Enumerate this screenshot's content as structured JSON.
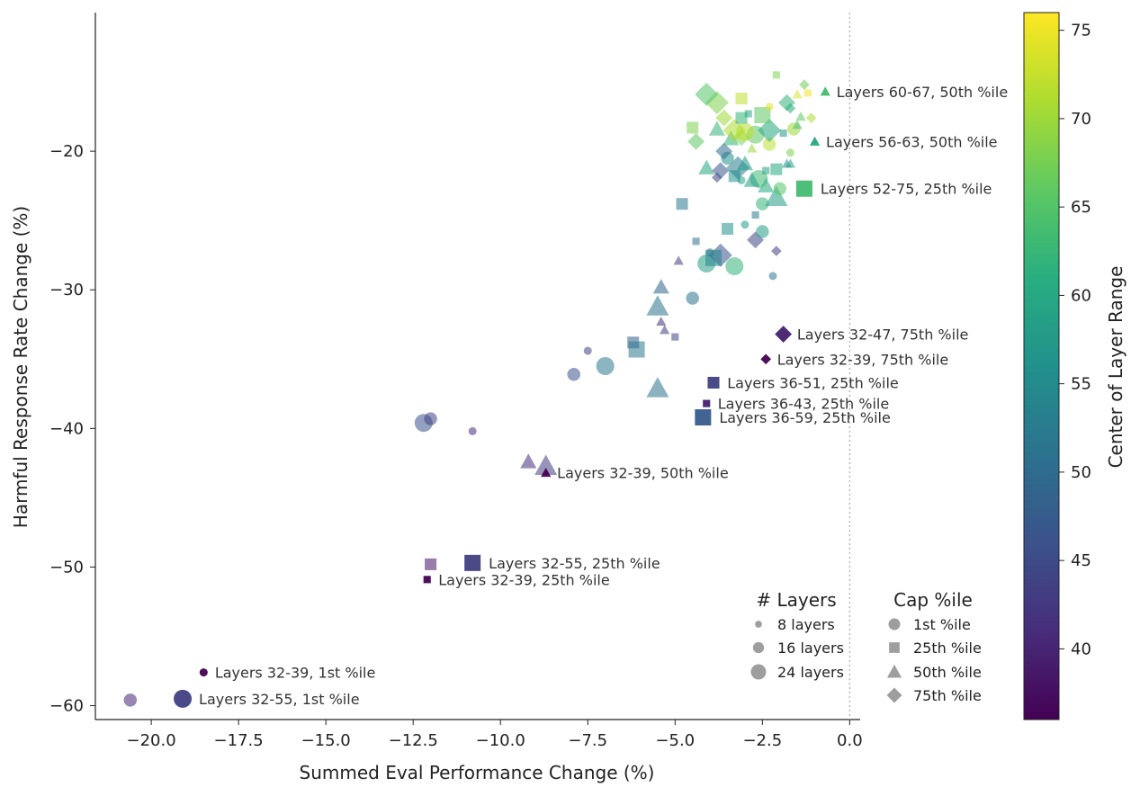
{
  "chart_data": {
    "type": "scatter",
    "title": "",
    "xlabel": "Summed Eval Performance Change (%)",
    "ylabel": "Harmful Response Rate Change (%)",
    "xlim": [
      -21.6,
      0.3
    ],
    "ylim": [
      -61,
      -10
    ],
    "xticks": [
      -20.0,
      -17.5,
      -15.0,
      -12.5,
      -10.0,
      -7.5,
      -5.0,
      -2.5,
      0.0
    ],
    "xtick_labels": [
      "−20.0",
      "−17.5",
      "−15.0",
      "−12.5",
      "−10.0",
      "−7.5",
      "−5.0",
      "−2.5",
      "0.0"
    ],
    "yticks": [
      -20,
      -30,
      -40,
      -50,
      -60
    ],
    "ytick_labels": [
      "−20",
      "−30",
      "−40",
      "−50",
      "−60"
    ],
    "reference_line_x": 0,
    "colorbar": {
      "label": "Center of Layer Range",
      "colormap": "viridis",
      "range": [
        36,
        76
      ],
      "ticks": [
        40,
        45,
        50,
        55,
        60,
        65,
        70,
        75
      ],
      "tick_labels": [
        "40",
        "45",
        "50",
        "55",
        "60",
        "65",
        "70",
        "75"
      ]
    },
    "legend_layers": {
      "title": "# Layers",
      "entries": [
        {
          "label": "8 layers",
          "n_layers": 8
        },
        {
          "label": "16 layers",
          "n_layers": 16
        },
        {
          "label": "24 layers",
          "n_layers": 24
        }
      ]
    },
    "legend_cap": {
      "title": "Cap %ile",
      "entries": [
        {
          "label": "1st %ile",
          "marker": "circle"
        },
        {
          "label": "25th %ile",
          "marker": "square"
        },
        {
          "label": "50th %ile",
          "marker": "triangle"
        },
        {
          "label": "75th %ile",
          "marker": "diamond"
        }
      ]
    },
    "highlighted": [
      {
        "label": "Layers 60-67, 50th %ile",
        "x": -0.7,
        "y": -15.7,
        "marker": "triangle",
        "n_layers": 8,
        "center": 63.5
      },
      {
        "label": "Layers 56-63, 50th %ile",
        "x": -1.0,
        "y": -19.3,
        "marker": "triangle",
        "n_layers": 8,
        "center": 59.5
      },
      {
        "label": "Layers 52-75, 25th %ile",
        "x": -1.3,
        "y": -22.7,
        "marker": "square",
        "n_layers": 24,
        "center": 63.5
      },
      {
        "label": "Layers 32-47, 75th %ile",
        "x": -1.9,
        "y": -33.2,
        "marker": "diamond",
        "n_layers": 16,
        "center": 39.5
      },
      {
        "label": "Layers 32-39, 75th %ile",
        "x": -2.4,
        "y": -35.0,
        "marker": "diamond",
        "n_layers": 8,
        "center": 35.5
      },
      {
        "label": "Layers 36-51, 25th %ile",
        "x": -3.9,
        "y": -36.7,
        "marker": "square",
        "n_layers": 16,
        "center": 43.5
      },
      {
        "label": "Layers 36-43, 25th %ile",
        "x": -4.1,
        "y": -38.2,
        "marker": "square",
        "n_layers": 8,
        "center": 39.5
      },
      {
        "label": "Layers 36-59, 25th %ile",
        "x": -4.2,
        "y": -39.2,
        "marker": "square",
        "n_layers": 24,
        "center": 47.5
      },
      {
        "label": "Layers 32-39, 50th %ile",
        "x": -8.7,
        "y": -43.2,
        "marker": "triangle",
        "n_layers": 8,
        "center": 35.5
      },
      {
        "label": "Layers 32-55, 25th %ile",
        "x": -10.8,
        "y": -49.7,
        "marker": "square",
        "n_layers": 24,
        "center": 43.5
      },
      {
        "label": "Layers 32-39, 25th %ile",
        "x": -12.1,
        "y": -50.9,
        "marker": "square",
        "n_layers": 8,
        "center": 35.5
      },
      {
        "label": "Layers 32-39, 1st %ile",
        "x": -18.5,
        "y": -57.6,
        "marker": "circle",
        "n_layers": 8,
        "center": 35.5
      },
      {
        "label": "Layers 32-55, 1st %ile",
        "x": -19.1,
        "y": -59.5,
        "marker": "circle",
        "n_layers": 24,
        "center": 43.5
      }
    ],
    "other_points": [
      {
        "x": -20.6,
        "y": -59.6,
        "marker": "circle",
        "n_layers": 16,
        "center": 40
      },
      {
        "x": -12.0,
        "y": -49.8,
        "marker": "square",
        "n_layers": 16,
        "center": 38
      },
      {
        "x": -12.2,
        "y": -39.6,
        "marker": "circle",
        "n_layers": 24,
        "center": 46
      },
      {
        "x": -12.0,
        "y": -39.3,
        "marker": "circle",
        "n_layers": 16,
        "center": 44
      },
      {
        "x": -10.8,
        "y": -40.2,
        "marker": "circle",
        "n_layers": 8,
        "center": 41
      },
      {
        "x": -9.2,
        "y": -42.4,
        "marker": "triangle",
        "n_layers": 16,
        "center": 41
      },
      {
        "x": -8.7,
        "y": -42.7,
        "marker": "triangle",
        "n_layers": 24,
        "center": 43
      },
      {
        "x": -7.9,
        "y": -36.1,
        "marker": "circle",
        "n_layers": 16,
        "center": 46
      },
      {
        "x": -7.5,
        "y": -34.4,
        "marker": "circle",
        "n_layers": 8,
        "center": 44
      },
      {
        "x": -7.0,
        "y": -35.5,
        "marker": "circle",
        "n_layers": 24,
        "center": 52
      },
      {
        "x": -6.2,
        "y": -33.8,
        "marker": "square",
        "n_layers": 16,
        "center": 48
      },
      {
        "x": -6.1,
        "y": -34.3,
        "marker": "square",
        "n_layers": 24,
        "center": 52
      },
      {
        "x": -5.0,
        "y": -33.4,
        "marker": "square",
        "n_layers": 8,
        "center": 44
      },
      {
        "x": -5.4,
        "y": -32.3,
        "marker": "triangle",
        "n_layers": 8,
        "center": 41
      },
      {
        "x": -5.3,
        "y": -32.9,
        "marker": "triangle",
        "n_layers": 8,
        "center": 43
      },
      {
        "x": -5.5,
        "y": -37.1,
        "marker": "triangle",
        "n_layers": 24,
        "center": 51
      },
      {
        "x": -5.5,
        "y": -31.2,
        "marker": "triangle",
        "n_layers": 24,
        "center": 51
      },
      {
        "x": -5.4,
        "y": -29.8,
        "marker": "triangle",
        "n_layers": 16,
        "center": 49
      },
      {
        "x": -4.5,
        "y": -30.6,
        "marker": "circle",
        "n_layers": 16,
        "center": 51
      },
      {
        "x": -4.9,
        "y": -27.9,
        "marker": "triangle",
        "n_layers": 8,
        "center": 43
      },
      {
        "x": -4.8,
        "y": -23.8,
        "marker": "square",
        "n_layers": 16,
        "center": 52
      },
      {
        "x": -4.4,
        "y": -26.5,
        "marker": "square",
        "n_layers": 8,
        "center": 51
      },
      {
        "x": -4.1,
        "y": -28.1,
        "marker": "circle",
        "n_layers": 24,
        "center": 58
      },
      {
        "x": -3.7,
        "y": -27.5,
        "marker": "diamond",
        "n_layers": 24,
        "center": 46
      },
      {
        "x": -3.9,
        "y": -27.7,
        "marker": "square",
        "n_layers": 24,
        "center": 54
      },
      {
        "x": -4.0,
        "y": -27.3,
        "marker": "circle",
        "n_layers": 8,
        "center": 52
      },
      {
        "x": -3.5,
        "y": -25.6,
        "marker": "square",
        "n_layers": 16,
        "center": 56
      },
      {
        "x": -3.3,
        "y": -28.3,
        "marker": "circle",
        "n_layers": 24,
        "center": 62
      },
      {
        "x": -3.0,
        "y": -25.3,
        "marker": "circle",
        "n_layers": 8,
        "center": 58
      },
      {
        "x": -2.7,
        "y": -24.6,
        "marker": "square",
        "n_layers": 8,
        "center": 52
      },
      {
        "x": -2.7,
        "y": -26.4,
        "marker": "diamond",
        "n_layers": 16,
        "center": 44
      },
      {
        "x": -2.5,
        "y": -25.8,
        "marker": "circle",
        "n_layers": 16,
        "center": 58
      },
      {
        "x": -2.1,
        "y": -27.2,
        "marker": "diamond",
        "n_layers": 8,
        "center": 43
      },
      {
        "x": -2.2,
        "y": -29.0,
        "marker": "circle",
        "n_layers": 8,
        "center": 52
      },
      {
        "x": -2.5,
        "y": -23.8,
        "marker": "circle",
        "n_layers": 16,
        "center": 62
      },
      {
        "x": -2.1,
        "y": -23.3,
        "marker": "triangle",
        "n_layers": 24,
        "center": 58
      },
      {
        "x": -2.0,
        "y": -22.7,
        "marker": "circle",
        "n_layers": 16,
        "center": 65
      },
      {
        "x": -2.4,
        "y": -22.5,
        "marker": "triangle",
        "n_layers": 16,
        "center": 60
      },
      {
        "x": -2.6,
        "y": -22.0,
        "marker": "circle",
        "n_layers": 24,
        "center": 63
      },
      {
        "x": -2.8,
        "y": -22.1,
        "marker": "triangle",
        "n_layers": 16,
        "center": 58
      },
      {
        "x": -3.1,
        "y": -22.1,
        "marker": "circle",
        "n_layers": 8,
        "center": 60
      },
      {
        "x": -3.3,
        "y": -21.8,
        "marker": "square",
        "n_layers": 16,
        "center": 56
      },
      {
        "x": -2.1,
        "y": -21.3,
        "marker": "square",
        "n_layers": 16,
        "center": 60
      },
      {
        "x": -2.4,
        "y": -21.4,
        "marker": "square",
        "n_layers": 8,
        "center": 58
      },
      {
        "x": -3.8,
        "y": -21.9,
        "marker": "diamond",
        "n_layers": 8,
        "center": 44
      },
      {
        "x": -3.7,
        "y": -21.4,
        "marker": "diamond",
        "n_layers": 16,
        "center": 47
      },
      {
        "x": -4.1,
        "y": -21.2,
        "marker": "triangle",
        "n_layers": 16,
        "center": 60
      },
      {
        "x": -3.2,
        "y": -21.2,
        "marker": "diamond",
        "n_layers": 24,
        "center": 53
      },
      {
        "x": -3.0,
        "y": -20.9,
        "marker": "triangle",
        "n_layers": 16,
        "center": 57
      },
      {
        "x": -3.5,
        "y": -20.5,
        "marker": "circle",
        "n_layers": 16,
        "center": 56
      },
      {
        "x": -3.6,
        "y": -20.0,
        "marker": "diamond",
        "n_layers": 16,
        "center": 50
      },
      {
        "x": -1.8,
        "y": -20.9,
        "marker": "triangle",
        "n_layers": 8,
        "center": 56
      },
      {
        "x": -1.7,
        "y": -20.9,
        "marker": "triangle",
        "n_layers": 8,
        "center": 58
      },
      {
        "x": -1.7,
        "y": -20.1,
        "marker": "circle",
        "n_layers": 8,
        "center": 68
      },
      {
        "x": -2.8,
        "y": -19.8,
        "marker": "triangle",
        "n_layers": 8,
        "center": 70
      },
      {
        "x": -2.3,
        "y": -19.5,
        "marker": "circle",
        "n_layers": 16,
        "center": 72
      },
      {
        "x": -4.4,
        "y": -19.3,
        "marker": "diamond",
        "n_layers": 16,
        "center": 66
      },
      {
        "x": -3.4,
        "y": -19.1,
        "marker": "triangle",
        "n_layers": 16,
        "center": 62
      },
      {
        "x": -3.1,
        "y": -19.0,
        "marker": "diamond",
        "n_layers": 16,
        "center": 68
      },
      {
        "x": -2.7,
        "y": -18.8,
        "marker": "circle",
        "n_layers": 24,
        "center": 66
      },
      {
        "x": -3.0,
        "y": -18.6,
        "marker": "circle",
        "n_layers": 24,
        "center": 72
      },
      {
        "x": -3.3,
        "y": -18.5,
        "marker": "diamond",
        "n_layers": 24,
        "center": 71
      },
      {
        "x": -3.8,
        "y": -18.4,
        "marker": "triangle",
        "n_layers": 16,
        "center": 62
      },
      {
        "x": -2.3,
        "y": -18.5,
        "marker": "diamond",
        "n_layers": 24,
        "center": 60
      },
      {
        "x": -1.9,
        "y": -18.7,
        "marker": "square",
        "n_layers": 8,
        "center": 57
      },
      {
        "x": -1.6,
        "y": -18.4,
        "marker": "circle",
        "n_layers": 16,
        "center": 70
      },
      {
        "x": -1.5,
        "y": -18.1,
        "marker": "triangle",
        "n_layers": 8,
        "center": 64
      },
      {
        "x": -4.5,
        "y": -18.3,
        "marker": "square",
        "n_layers": 16,
        "center": 68
      },
      {
        "x": -3.6,
        "y": -17.6,
        "marker": "diamond",
        "n_layers": 16,
        "center": 70
      },
      {
        "x": -3.1,
        "y": -17.6,
        "marker": "square",
        "n_layers": 16,
        "center": 62
      },
      {
        "x": -2.9,
        "y": -17.3,
        "marker": "square",
        "n_layers": 8,
        "center": 60
      },
      {
        "x": -2.5,
        "y": -17.4,
        "marker": "square",
        "n_layers": 24,
        "center": 66
      },
      {
        "x": -1.4,
        "y": -17.5,
        "marker": "triangle",
        "n_layers": 8,
        "center": 66
      },
      {
        "x": -1.1,
        "y": -17.6,
        "marker": "diamond",
        "n_layers": 8,
        "center": 71
      },
      {
        "x": -2.3,
        "y": -16.8,
        "marker": "circle",
        "n_layers": 8,
        "center": 74
      },
      {
        "x": -1.7,
        "y": -16.9,
        "marker": "diamond",
        "n_layers": 8,
        "center": 60
      },
      {
        "x": -1.8,
        "y": -16.5,
        "marker": "diamond",
        "n_layers": 16,
        "center": 62
      },
      {
        "x": -3.8,
        "y": -16.5,
        "marker": "diamond",
        "n_layers": 24,
        "center": 68
      },
      {
        "x": -4.1,
        "y": -15.9,
        "marker": "diamond",
        "n_layers": 24,
        "center": 65
      },
      {
        "x": -3.1,
        "y": -16.2,
        "marker": "square",
        "n_layers": 16,
        "center": 72
      },
      {
        "x": -1.5,
        "y": -15.9,
        "marker": "triangle",
        "n_layers": 8,
        "center": 74
      },
      {
        "x": -1.2,
        "y": -15.8,
        "marker": "square",
        "n_layers": 8,
        "center": 75
      },
      {
        "x": -1.3,
        "y": -15.2,
        "marker": "diamond",
        "n_layers": 8,
        "center": 67
      },
      {
        "x": -2.1,
        "y": -14.5,
        "marker": "square",
        "n_layers": 8,
        "center": 68
      }
    ]
  }
}
